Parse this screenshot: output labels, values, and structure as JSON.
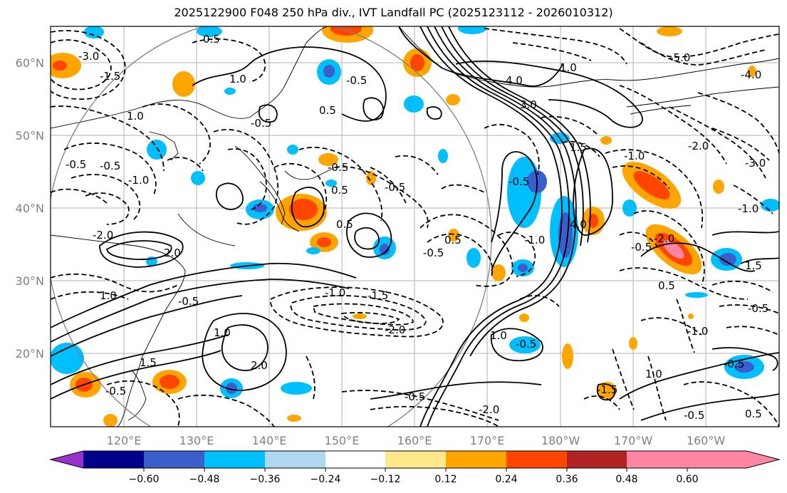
{
  "title": "2025122900 F048 250 hPa div., IVT Landfall PC (2025123112 - 2026010312)",
  "lon_ticks": [
    "120°E",
    "130°E",
    "140°E",
    "150°E",
    "160°E",
    "170°E",
    "180°W",
    "170°W",
    "160°W"
  ],
  "lat_ticks": [
    "60°N",
    "50°N",
    "40°N",
    "30°N",
    "20°N"
  ],
  "colorbar": {
    "ticks": [
      "−0.60",
      "−0.48",
      "−0.36",
      "−0.24",
      "−0.12",
      "0.12",
      "0.24",
      "0.36",
      "0.48",
      "0.60"
    ],
    "colors": [
      "#9932cc",
      "#00008b",
      "#3a5fcd",
      "#00bfff",
      "#add8f0",
      "#ffffff",
      "#ffe98a",
      "#ffa500",
      "#ff4500",
      "#b22222",
      "#ff85a2"
    ]
  },
  "contour_labels": {
    "l01": "-0.5",
    "l02": "-1.0",
    "l03": "-0.5",
    "l04": "0.5",
    "l05": "1.0",
    "l06": "-0.5",
    "l07": "1.0",
    "l08": "0.5",
    "l09": "-0.5",
    "l10": "0.5",
    "l11": "-0.5",
    "l12": "-2.0",
    "l13": "-1.0",
    "l14": "-1.5",
    "l15": "-2.0",
    "l16": "-0.5",
    "l17": "1.0",
    "l18": "2.0",
    "l19": "1.5",
    "l20": "-0.5",
    "l21": "1.0",
    "l22": "2.0",
    "l23": "-0.5",
    "l24": "-0.5",
    "l25": "4.0",
    "l26": "3.0",
    "l27": "1.0",
    "l28": "-0.5",
    "l29": "-1.0",
    "l30": "0.5",
    "l31": "4.0",
    "l32": "1.5",
    "l33": "-1.0",
    "l34": "-0.5",
    "l35": "-2.0",
    "l36": "0.5",
    "l37": "1.0",
    "l38": "-0.5",
    "l39": "-1.5",
    "l40": "1.0",
    "l41": "-0.5",
    "l42": "0.5",
    "l43": "1.5",
    "l44": "-1.0",
    "l45": "-0.5",
    "l46": "-5.0",
    "l47": "-2.0",
    "l48": "-3.0",
    "l49": "-1.5",
    "l50": "-3.0",
    "l51": "-1.0",
    "l52": "-0.5",
    "l53": "0.5",
    "l54": "-4.0",
    "l55": "-2.0",
    "l56": "-0.5"
  }
}
